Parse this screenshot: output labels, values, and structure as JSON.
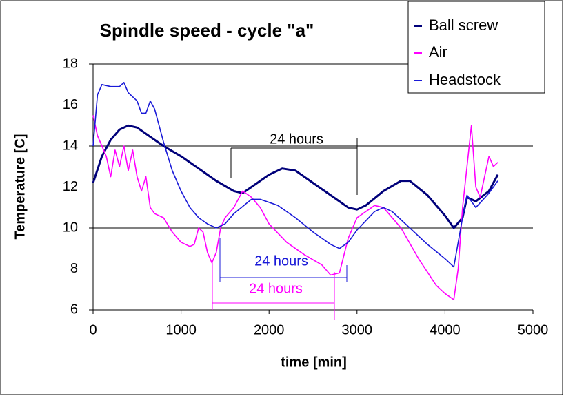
{
  "chart_data": {
    "type": "line",
    "title": "Spindle speed - cycle \"a\"",
    "xlabel": "time [min]",
    "ylabel": "Temperature [C]",
    "xlim": [
      0,
      5000
    ],
    "xticks": [
      0,
      1000,
      2000,
      3000,
      4000,
      5000
    ],
    "ylim": [
      6,
      18
    ],
    "yticks": [
      6,
      8,
      10,
      12,
      14,
      16,
      18
    ],
    "grid": true,
    "legend": "top-right",
    "annotations": [
      {
        "text": "24 hours",
        "color": "#000000"
      },
      {
        "text": "24 hours",
        "color": "#1a1ad8"
      },
      {
        "text": "24 hours",
        "color": "#ff00ff"
      }
    ],
    "series": [
      {
        "name": "Ball screw",
        "color": "#00007a",
        "x": [
          0,
          100,
          200,
          300,
          400,
          500,
          600,
          700,
          800,
          1000,
          1200,
          1400,
          1600,
          1700,
          1800,
          2000,
          2150,
          2300,
          2500,
          2700,
          2900,
          3000,
          3100,
          3300,
          3500,
          3600,
          3800,
          4000,
          4100,
          4200,
          4250,
          4350,
          4500,
          4600
        ],
        "values": [
          12.2,
          13.5,
          14.3,
          14.8,
          15.0,
          14.9,
          14.6,
          14.3,
          14.0,
          13.5,
          12.9,
          12.3,
          11.8,
          11.7,
          12.0,
          12.6,
          12.9,
          12.8,
          12.2,
          11.6,
          11.0,
          10.9,
          11.1,
          11.8,
          12.3,
          12.3,
          11.6,
          10.6,
          10.0,
          10.5,
          11.5,
          11.3,
          11.8,
          12.6
        ]
      },
      {
        "name": "Air",
        "color": "#ff00ff",
        "x": [
          0,
          50,
          100,
          150,
          200,
          250,
          300,
          350,
          400,
          450,
          500,
          550,
          600,
          650,
          700,
          800,
          900,
          1000,
          1100,
          1150,
          1200,
          1250,
          1300,
          1350,
          1400,
          1450,
          1500,
          1600,
          1700,
          1800,
          1900,
          2000,
          2200,
          2400,
          2600,
          2700,
          2800,
          2900,
          3000,
          3200,
          3300,
          3500,
          3700,
          3900,
          4000,
          4100,
          4150,
          4200,
          4250,
          4300,
          4350,
          4400,
          4500,
          4550,
          4600
        ],
        "values": [
          15.5,
          14.5,
          14.0,
          13.5,
          12.5,
          13.8,
          13.0,
          14.0,
          12.8,
          13.8,
          12.5,
          11.8,
          12.5,
          11.0,
          10.7,
          10.5,
          9.8,
          9.3,
          9.1,
          9.2,
          10.0,
          9.8,
          8.8,
          8.3,
          8.8,
          10.0,
          10.5,
          11.0,
          11.8,
          11.5,
          11.0,
          10.2,
          9.3,
          8.7,
          8.2,
          7.7,
          7.8,
          9.5,
          10.5,
          11.1,
          11.0,
          10.0,
          8.5,
          7.2,
          6.8,
          6.5,
          8.0,
          11.0,
          13.0,
          15.0,
          12.0,
          11.5,
          13.5,
          13.0,
          13.2
        ]
      },
      {
        "name": "Headstock",
        "color": "#1a1ad8",
        "x": [
          0,
          50,
          100,
          200,
          300,
          350,
          400,
          500,
          550,
          600,
          650,
          700,
          800,
          900,
          1000,
          1100,
          1200,
          1300,
          1400,
          1500,
          1600,
          1800,
          1900,
          2100,
          2300,
          2500,
          2700,
          2800,
          2900,
          3000,
          3200,
          3300,
          3400,
          3600,
          3800,
          4000,
          4100,
          4200,
          4250,
          4350,
          4500,
          4600
        ],
        "values": [
          14.0,
          16.5,
          17.0,
          16.9,
          16.9,
          17.1,
          16.6,
          16.2,
          15.6,
          15.6,
          16.2,
          15.8,
          14.2,
          12.8,
          11.8,
          11.0,
          10.5,
          10.2,
          10.0,
          10.2,
          10.7,
          11.4,
          11.4,
          11.1,
          10.5,
          9.8,
          9.2,
          9.0,
          9.3,
          9.9,
          10.8,
          11.0,
          10.8,
          10.0,
          9.2,
          8.5,
          8.1,
          10.5,
          11.6,
          11.0,
          11.7,
          12.3
        ]
      }
    ]
  }
}
